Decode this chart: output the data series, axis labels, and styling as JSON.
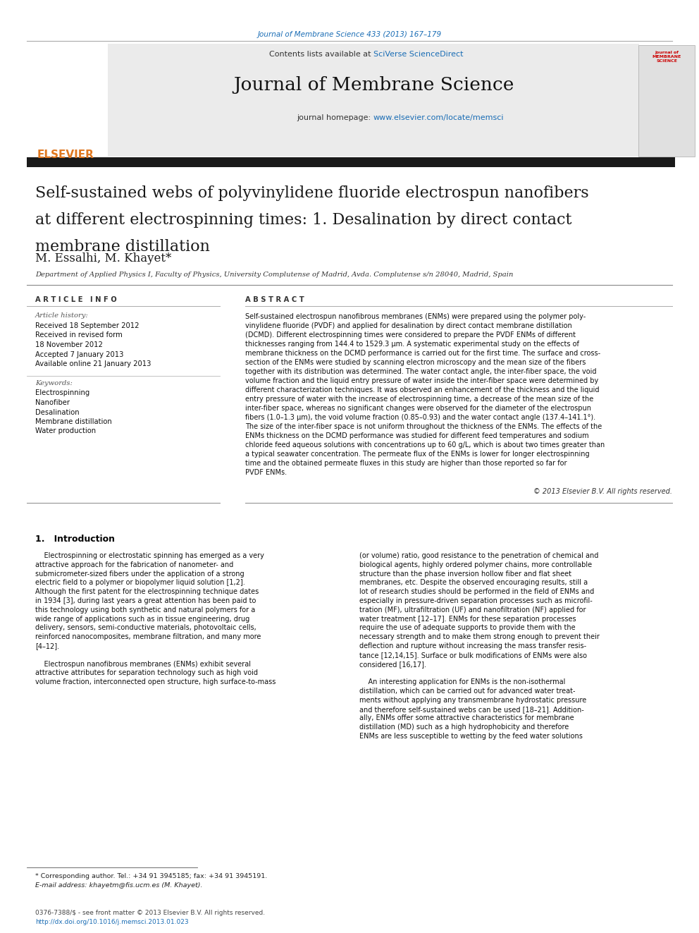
{
  "page_title": "Journal of Membrane Science 433 (2013) 167–179",
  "journal_name": "Journal of Membrane Science",
  "contents_text": "Contents lists available at ",
  "contents_link": "SciVerse ScienceDirect",
  "homepage_text": "journal homepage: ",
  "homepage_link": "www.elsevier.com/locate/memsci",
  "paper_title_line1": "Self-sustained webs of polyvinylidene fluoride electrospun nanofibers",
  "paper_title_line2": "at different electrospinning times: 1. Desalination by direct contact",
  "paper_title_line3": "membrane distillation",
  "authors": "M. Essalhi, M. Khayet*",
  "affiliation": "Department of Applied Physics I, Faculty of Physics, University Complutense of Madrid, Avda. Complutense s/n 28040, Madrid, Spain",
  "article_info_header": "A R T I C L E   I N F O",
  "article_history_label": "Article history:",
  "received_line": "Received 18 September 2012",
  "revised_line": "Received in revised form",
  "revised_date": "18 November 2012",
  "accepted_line": "Accepted 7 January 2013",
  "available_line": "Available online 21 January 2013",
  "keywords_label": "Keywords:",
  "keywords": [
    "Electrospinning",
    "Nanofiber",
    "Desalination",
    "Membrane distillation",
    "Water production"
  ],
  "abstract_header": "A B S T R A C T",
  "abstract_lines": [
    "Self-sustained electrospun nanofibrous membranes (ENMs) were prepared using the polymer poly-",
    "vinylidene fluoride (PVDF) and applied for desalination by direct contact membrane distillation",
    "(DCMD). Different electrospinning times were considered to prepare the PVDF ENMs of different",
    "thicknesses ranging from 144.4 to 1529.3 μm. A systematic experimental study on the effects of",
    "membrane thickness on the DCMD performance is carried out for the first time. The surface and cross-",
    "section of the ENMs were studied by scanning electron microscopy and the mean size of the fibers",
    "together with its distribution was determined. The water contact angle, the inter-fiber space, the void",
    "volume fraction and the liquid entry pressure of water inside the inter-fiber space were determined by",
    "different characterization techniques. It was observed an enhancement of the thickness and the liquid",
    "entry pressure of water with the increase of electrospinning time, a decrease of the mean size of the",
    "inter-fiber space, whereas no significant changes were observed for the diameter of the electrospun",
    "fibers (1.0–1.3 μm), the void volume fraction (0.85–0.93) and the water contact angle (137.4–141.1°).",
    "The size of the inter-fiber space is not uniform throughout the thickness of the ENMs. The effects of the",
    "ENMs thickness on the DCMD performance was studied for different feed temperatures and sodium",
    "chloride feed aqueous solutions with concentrations up to 60 g/L, which is about two times greater than",
    "a typical seawater concentration. The permeate flux of the ENMs is lower for longer electrospinning",
    "time and the obtained permeate fluxes in this study are higher than those reported so far for",
    "PVDF ENMs."
  ],
  "copyright": "© 2013 Elsevier B.V. All rights reserved.",
  "intro_header": "1.   Introduction",
  "intro_col1_lines": [
    "    Electrospinning or electrostatic spinning has emerged as a very",
    "attractive approach for the fabrication of nanometer- and",
    "submicrometer-sized fibers under the application of a strong",
    "electric field to a polymer or biopolymer liquid solution [1,2].",
    "Although the first patent for the electrospinning technique dates",
    "in 1934 [3], during last years a great attention has been paid to",
    "this technology using both synthetic and natural polymers for a",
    "wide range of applications such as in tissue engineering, drug",
    "delivery, sensors, semi-conductive materials, photovoltaic cells,",
    "reinforced nanocomposites, membrane filtration, and many more",
    "[4–12].",
    "",
    "    Electrospun nanofibrous membranes (ENMs) exhibit several",
    "attractive attributes for separation technology such as high void",
    "volume fraction, interconnected open structure, high surface-to-mass"
  ],
  "intro_col2_lines": [
    "(or volume) ratio, good resistance to the penetration of chemical and",
    "biological agents, highly ordered polymer chains, more controllable",
    "structure than the phase inversion hollow fiber and flat sheet",
    "membranes, etc. Despite the observed encouraging results, still a",
    "lot of research studies should be performed in the field of ENMs and",
    "especially in pressure-driven separation processes such as microfil-",
    "tration (MF), ultrafiltration (UF) and nanofiltration (NF) applied for",
    "water treatment [12–17]. ENMs for these separation processes",
    "require the use of adequate supports to provide them with the",
    "necessary strength and to make them strong enough to prevent their",
    "deflection and rupture without increasing the mass transfer resis-",
    "tance [12,14,15]. Surface or bulk modifications of ENMs were also",
    "considered [16,17].",
    "",
    "    An interesting application for ENMs is the non-isothermal",
    "distillation, which can be carried out for advanced water treat-",
    "ments without applying any transmembrane hydrostatic pressure",
    "and therefore self-sustained webs can be used [18–21]. Addition-",
    "ally, ENMs offer some attractive characteristics for membrane",
    "distillation (MD) such as a high hydrophobicity and therefore",
    "ENMs are less susceptible to wetting by the feed water solutions"
  ],
  "footnote_star": "* Corresponding author. Tel.: +34 91 3945185; fax: +34 91 3945191.",
  "footnote_email": "E-mail address: khayetm@fis.ucm.es (M. Khayet).",
  "footer_issn": "0376-7388/$ - see front matter © 2013 Elsevier B.V. All rights reserved.",
  "footer_doi": "http://dx.doi.org/10.1016/j.memsci.2013.01.023",
  "bg_color": "#ffffff",
  "header_bg": "#ebebeb",
  "black_bar_color": "#1a1a1a",
  "blue_link_color": "#1a6db5",
  "orange_color": "#e07820",
  "text_color": "#000000",
  "gray_text": "#555555"
}
